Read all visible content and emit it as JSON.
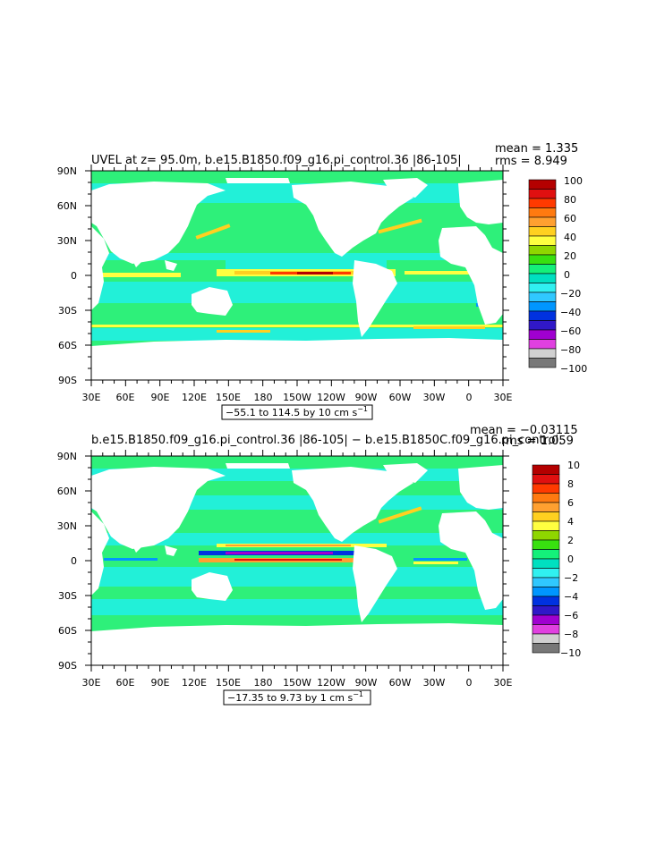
{
  "panels": [
    {
      "title": "UVEL at z=  95.0m, b.e15.B1850.f09_g16.pi_control.36 |86-105|",
      "mean_text": "mean = 1.335",
      "rms_text": "rms = 8.949",
      "range_text": "−55.1 to 114.5 by 10 cm s",
      "range_sup": "−1",
      "lat_labels": [
        "90N",
        "60N",
        "30N",
        "0",
        "30S",
        "60S",
        "90S"
      ],
      "lon_labels": [
        "30E",
        "60E",
        "90E",
        "120E",
        "150E",
        "180",
        "150W",
        "120W",
        "90W",
        "60W",
        "30W",
        "0",
        "30E"
      ],
      "colorbar_labels": [
        "100",
        "80",
        "60",
        "40",
        "20",
        "0",
        "−20",
        "−40",
        "−60",
        "−80",
        "−100"
      ],
      "colorbar_colors": [
        "#b40000",
        "#e01010",
        "#ff3a00",
        "#ff7a10",
        "#ffa030",
        "#ffd020",
        "#ffff40",
        "#8fd600",
        "#38e010",
        "#14f07a",
        "#00e0c0",
        "#30f0f0",
        "#30c8ff",
        "#0096ff",
        "#0032e0",
        "#3018c8",
        "#a000d0",
        "#e040e0",
        "#d0d0d0",
        "#787878"
      ]
    },
    {
      "title": "b.e15.B1850.f09_g16.pi_control.36 |86-105| − b.e15.B1850C.f09_g16.pi_control.",
      "mean_text": "mean = −0.03115",
      "rms_text": "rms = 1.059",
      "range_text": "−17.35 to 9.73 by 1 cm s",
      "range_sup": "−1",
      "lat_labels": [
        "90N",
        "60N",
        "30N",
        "0",
        "30S",
        "60S",
        "90S"
      ],
      "lon_labels": [
        "30E",
        "60E",
        "90E",
        "120E",
        "150E",
        "180",
        "150W",
        "120W",
        "90W",
        "60W",
        "30W",
        "0",
        "30E"
      ],
      "colorbar_labels": [
        "10",
        "8",
        "6",
        "4",
        "2",
        "0",
        "−2",
        "−4",
        "−6",
        "−8",
        "−10"
      ],
      "colorbar_colors": [
        "#b40000",
        "#e01010",
        "#ff3a00",
        "#ff7a10",
        "#ffa030",
        "#ffd020",
        "#ffff40",
        "#8fd600",
        "#38e010",
        "#14f07a",
        "#00e0c0",
        "#30f0f0",
        "#30c8ff",
        "#0096ff",
        "#0032e0",
        "#3018c8",
        "#a000d0",
        "#e040e0",
        "#d0d0d0",
        "#787878"
      ]
    }
  ],
  "colors": {
    "ocean_base": "#2ef07a",
    "ocean_cyan": "#22f0d8",
    "land": "#ffffff",
    "frame": "#000000"
  }
}
